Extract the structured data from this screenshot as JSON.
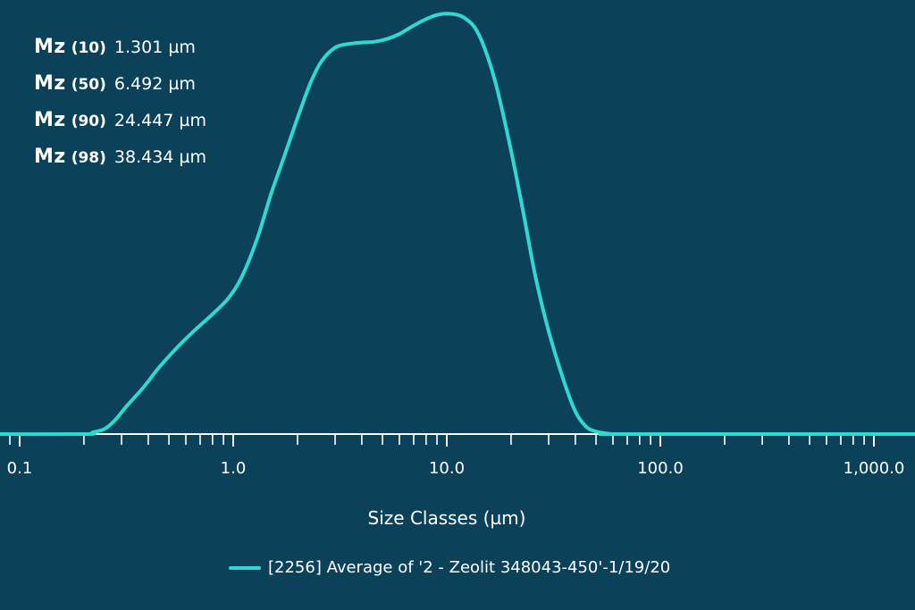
{
  "stats": [
    {
      "label": "Mz",
      "pct": "(10)",
      "value": "1.301 µm"
    },
    {
      "label": "Mz",
      "pct": "(50)",
      "value": "6.492 µm"
    },
    {
      "label": "Mz",
      "pct": "(90)",
      "value": "24.447 µm"
    },
    {
      "label": "Mz",
      "pct": "(98)",
      "value": "38.434 µm"
    }
  ],
  "chart_data": {
    "type": "line",
    "title": "",
    "xlabel": "Size Classes (µm)",
    "ylabel": "",
    "x_scale": "log",
    "xlim": [
      0.06,
      2000
    ],
    "ylim": [
      0,
      100
    ],
    "x_ticks": [
      0.1,
      1.0,
      10.0,
      100.0,
      1000.0
    ],
    "x_tick_labels": [
      "0.1",
      "1.0",
      "10.0",
      "100.0",
      "1,000.0"
    ],
    "grid": false,
    "legend_position": "bottom",
    "series": [
      {
        "name": "[2256] Average of '2 - Zeolit   348043-450'-1/19/20",
        "color": "#2fd9d2",
        "x": [
          0.06,
          0.2,
          0.22,
          0.25,
          0.28,
          0.32,
          0.38,
          0.45,
          0.55,
          0.65,
          0.8,
          0.95,
          1.1,
          1.3,
          1.5,
          1.7,
          2.0,
          2.3,
          2.6,
          3.0,
          3.4,
          4.0,
          4.6,
          5.3,
          6.0,
          7.0,
          8.0,
          9.0,
          10.0,
          11.0,
          12.0,
          13.5,
          15.0,
          17.0,
          20.0,
          23.0,
          26.0,
          30.0,
          35.0,
          40.0,
          45.0,
          50.0,
          55.0,
          60.0,
          70.0,
          2000
        ],
        "y": [
          0,
          0,
          0.4,
          1.2,
          3.3,
          6.8,
          11.0,
          15.7,
          20.5,
          24.1,
          28.2,
          32.0,
          37.1,
          46.2,
          56.3,
          64.1,
          74.3,
          82.6,
          87.8,
          90.9,
          91.7,
          92.1,
          92.3,
          93.0,
          94.1,
          96.1,
          97.6,
          98.6,
          98.9,
          98.7,
          98.0,
          95.7,
          90.9,
          82.2,
          66.7,
          51.2,
          37.1,
          24.2,
          13.1,
          5.3,
          1.7,
          0.6,
          0.2,
          0,
          0,
          0
        ]
      }
    ]
  }
}
